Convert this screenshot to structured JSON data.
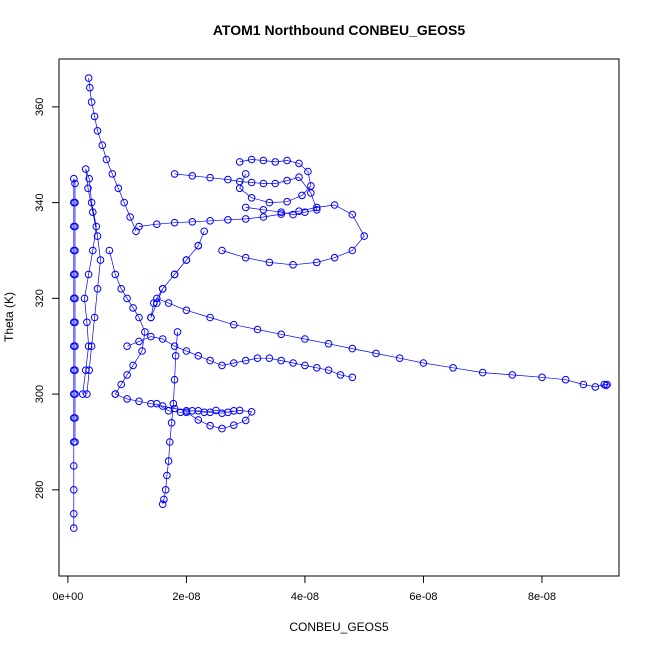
{
  "chart_data": {
    "type": "scatter",
    "title": "ATOM1 Northbound CONBEU_GEOS5",
    "xlabel": "CONBEU_GEOS5",
    "ylabel": "Theta (K)",
    "xlim": [
      -1.5e-09,
      9.3e-08
    ],
    "ylim": [
      262,
      370
    ],
    "x_ticks": [
      0,
      2e-08,
      4e-08,
      6e-08,
      8e-08
    ],
    "x_tick_labels": [
      "0e+00",
      "2e-08",
      "4e-08",
      "6e-08",
      "8e-08"
    ],
    "y_ticks": [
      280,
      300,
      320,
      340,
      360
    ],
    "y_tick_labels": [
      "280",
      "300",
      "320",
      "340",
      "360"
    ],
    "marker": "open-circle",
    "connected": true,
    "color": "#0000ff",
    "series": [
      {
        "x": [
          1e-09,
          1e-09,
          1e-09,
          1e-09,
          1e-09,
          1e-09,
          1e-09,
          1e-09,
          1e-09,
          1e-09,
          1e-09,
          1e-09,
          1e-09,
          1e-09,
          1e-09,
          1e-09,
          1.2e-09,
          1.2e-09,
          1.2e-09,
          1.2e-09,
          1.2e-09,
          1.2e-09,
          1.2e-09,
          1.2e-09,
          1.2e-09,
          1.2e-09,
          1.2e-09,
          1.2e-09
        ],
        "y": [
          272,
          275,
          280,
          285,
          290,
          295,
          300,
          305,
          310,
          315,
          320,
          325,
          330,
          335,
          340,
          345,
          344,
          340,
          335,
          330,
          325,
          320,
          315,
          310,
          305,
          300,
          295,
          290
        ]
      },
      {
        "x": [
          2.5e-09,
          3e-09,
          3.5e-09,
          3.2e-09,
          2.8e-09,
          3.5e-09,
          4.2e-09,
          4.8e-09,
          4e-09,
          3.6e-09,
          3e-09,
          3.4e-09,
          4.2e-09,
          5e-09,
          5.5e-09,
          5e-09,
          4.5e-09,
          4e-09,
          3.6e-09,
          3.2e-09
        ],
        "y": [
          300,
          305,
          310,
          315,
          320,
          325,
          330,
          335,
          340,
          345,
          347,
          343,
          338,
          333,
          328,
          322,
          316,
          310,
          305,
          300
        ]
      },
      {
        "x": [
          3.5e-09,
          3.7e-09,
          4e-09,
          4.5e-09,
          5e-09,
          5.8e-09,
          6.5e-09,
          7.5e-09,
          8.5e-09,
          9.5e-09,
          1.05e-08,
          1.15e-08
        ],
        "y": [
          366,
          364,
          361,
          358,
          355,
          352,
          349,
          346,
          343,
          340,
          337,
          334
        ]
      },
      {
        "x": [
          1.2e-08,
          1.5e-08,
          1.8e-08,
          2.1e-08,
          2.4e-08,
          2.7e-08,
          3e-08,
          3.3e-08,
          3.6e-08,
          3.9e-08,
          4.2e-08,
          4.5e-08,
          4.8e-08,
          5e-08,
          4.8e-08,
          4.5e-08,
          4.2e-08,
          3.8e-08,
          3.4e-08,
          3e-08,
          2.6e-08
        ],
        "y": [
          335,
          335.5,
          335.8,
          336,
          336.2,
          336.4,
          336.6,
          337,
          337.6,
          338.2,
          339,
          339.5,
          337.5,
          333,
          330,
          328.5,
          327.5,
          327,
          327.5,
          328.5,
          330
        ]
      },
      {
        "x": [
          1.8e-08,
          2.1e-08,
          2.4e-08,
          2.7e-08,
          2.9e-08,
          3.1e-08,
          3.3e-08,
          3.5e-08,
          3.7e-08,
          3.9e-08,
          4.1e-08,
          4.2e-08,
          4e-08,
          3.8e-08,
          3.6e-08,
          3.3e-08,
          3e-08
        ],
        "y": [
          346,
          345.6,
          345.2,
          344.8,
          344.4,
          344.2,
          344,
          344,
          344.6,
          345.3,
          342,
          338.5,
          338,
          337.5,
          338,
          338.5,
          339
        ]
      },
      {
        "x": [
          2.9e-08,
          3.1e-08,
          3.3e-08,
          3.5e-08,
          3.7e-08,
          3.9e-08,
          4.05e-08,
          4.1e-08,
          3.95e-08,
          3.7e-08,
          3.4e-08,
          3.1e-08,
          2.9e-08,
          3e-08
        ],
        "y": [
          348.5,
          349,
          348.8,
          348.5,
          348.8,
          348.2,
          346.5,
          343.5,
          341.5,
          340.2,
          340,
          341,
          343,
          346
        ]
      },
      {
        "x": [
          1.4e-08,
          1.5e-08,
          1.6e-08,
          1.8e-08,
          2e-08,
          2.2e-08,
          2.3e-08,
          2.2e-08,
          2e-08,
          1.8e-08,
          1.6e-08,
          1.45e-08,
          1.4e-08
        ],
        "y": [
          316,
          319,
          322,
          325,
          328,
          331,
          334,
          331,
          328,
          325,
          322,
          319,
          316
        ]
      },
      {
        "x": [
          1.5e-08,
          1.7e-08,
          2e-08,
          2.4e-08,
          2.8e-08,
          3.2e-08,
          3.6e-08,
          4e-08,
          4.4e-08,
          4.8e-08,
          5.2e-08,
          5.6e-08,
          6e-08,
          6.5e-08,
          7e-08,
          7.5e-08,
          8e-08,
          8.4e-08,
          8.7e-08,
          8.9e-08,
          9.05e-08,
          9.1e-08,
          9.08e-08
        ],
        "y": [
          320,
          319,
          317.5,
          316,
          314.5,
          313.5,
          312.5,
          311.5,
          310.5,
          309.5,
          308.5,
          307.5,
          306.5,
          305.5,
          304.5,
          304,
          303.5,
          303,
          302,
          301.5,
          302,
          302,
          301.8
        ]
      },
      {
        "x": [
          1.6e-08,
          1.62e-08,
          1.65e-08,
          1.67e-08,
          1.7e-08,
          1.72e-08,
          1.75e-08,
          1.78e-08,
          1.8e-08,
          1.82e-08,
          1.85e-08
        ],
        "y": [
          277,
          278,
          280,
          283,
          286,
          290,
          294,
          298,
          303,
          308,
          313
        ]
      },
      {
        "x": [
          1.5e-08,
          1.7e-08,
          1.9e-08,
          2.1e-08,
          2.3e-08,
          2.5e-08,
          2.7e-08,
          2.9e-08,
          3.1e-08,
          3e-08,
          2.8e-08,
          2.6e-08,
          2.4e-08,
          2.2e-08,
          2e-08
        ],
        "y": [
          298,
          296.5,
          296.2,
          296.5,
          296.2,
          296.6,
          296.2,
          296.6,
          296.3,
          294.5,
          293.5,
          292.8,
          293.4,
          294.6,
          296.2
        ]
      },
      {
        "x": [
          1e-08,
          1.2e-08,
          1.4e-08,
          1.6e-08,
          1.8e-08,
          2e-08,
          2.2e-08,
          2.4e-08,
          2.6e-08,
          2.8e-08,
          3e-08,
          3.2e-08,
          3.4e-08,
          3.6e-08,
          3.8e-08,
          4e-08,
          4.2e-08,
          4.4e-08,
          4.6e-08,
          4.8e-08
        ],
        "y": [
          310,
          311,
          312,
          311.5,
          310,
          309,
          308,
          307,
          306,
          306.5,
          307,
          307.5,
          307.5,
          307,
          306.5,
          306,
          305.5,
          305,
          304,
          303.5
        ]
      },
      {
        "x": [
          8e-09,
          1e-08,
          1.2e-08,
          1.4e-08,
          1.6e-08,
          1.8e-08,
          2e-08,
          2.2e-08,
          2.4e-08,
          2.6e-08,
          2.8e-08
        ],
        "y": [
          300,
          299,
          298.5,
          298,
          297.5,
          297,
          296.5,
          296.5,
          296.2,
          296,
          296.5
        ]
      },
      {
        "x": [
          7e-09,
          8e-09,
          9e-09,
          1e-08,
          1.1e-08,
          1.2e-08,
          1.3e-08,
          1.25e-08,
          1.1e-08,
          1e-08,
          9e-09,
          8e-09
        ],
        "y": [
          330,
          325,
          322,
          320,
          318,
          316,
          313,
          309,
          306,
          304,
          302,
          300
        ]
      }
    ]
  }
}
